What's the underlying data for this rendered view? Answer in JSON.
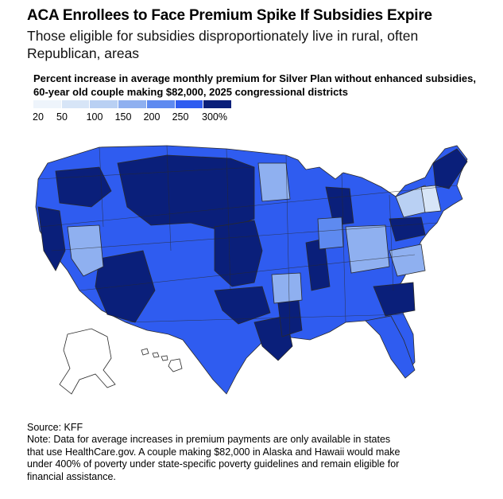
{
  "title": "ACA Enrollees to Face Premium Spike If Subsidies Expire",
  "subtitle": "Those eligible for subsidies disproportionately live in rural, often Republican, areas",
  "map_title": "Percent increase in average monthly premium for Silver Plan without enhanced subsidies, 60-year old couple making $82,000, 2025 congressional districts",
  "legend": {
    "colors": [
      "#eef4fb",
      "#d7e5f7",
      "#b9d0f3",
      "#8fb0f0",
      "#5e8af0",
      "#2f5cf0",
      "#0a1f7a"
    ],
    "labels": [
      "20",
      "50",
      "100",
      "150",
      "200",
      "250",
      "300%"
    ]
  },
  "colors": {
    "no_data": "#ffffff",
    "border": "#2a2a2a"
  },
  "source": "Source: KFF",
  "note": "Note: Data for average increases in premium payments are only available in states that use HealthCare.gov. A couple making $82,000 in Alaska and Hawaii would make under 400% of poverty under state-specific poverty guidelines and remain eligible for financial assistance."
}
